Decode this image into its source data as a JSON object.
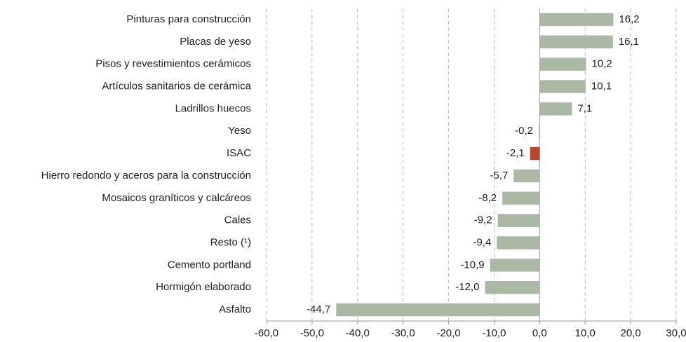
{
  "chart_data": {
    "type": "barh",
    "categories": [
      "Pinturas para construcción",
      "Placas de yeso",
      "Pisos y revestimientos cerámicos",
      "Artículos sanitarios de cerámica",
      "Ladrillos huecos",
      "Yeso",
      "ISAC",
      "Hierro redondo y aceros para la construcción",
      "Mosaicos graníticos y calcáreos",
      "Cales",
      "Resto (¹)",
      "Cemento portland",
      "Hormigón elaborado",
      "Asfalto"
    ],
    "values": [
      16.2,
      16.1,
      10.2,
      10.1,
      7.1,
      -0.2,
      -2.1,
      -5.7,
      -8.2,
      -9.2,
      -9.4,
      -10.9,
      -12.0,
      -44.7
    ],
    "value_labels": [
      "16,2",
      "16,1",
      "10,2",
      "10,1",
      "7,1",
      "-0,2",
      "-2,1",
      "-5,7",
      "-8,2",
      "-9,2",
      "-9,4",
      "-10,9",
      "-12,0",
      "-44,7"
    ],
    "colors": [
      "#abb8a3",
      "#abb8a3",
      "#abb8a3",
      "#abb8a3",
      "#abb8a3",
      "#abb8a3",
      "#b5452d",
      "#abb8a3",
      "#abb8a3",
      "#abb8a3",
      "#abb8a3",
      "#abb8a3",
      "#abb8a3",
      "#abb8a3"
    ],
    "xlim": [
      -60,
      30
    ],
    "xticks": [
      {
        "value": -60,
        "label": "-60,0"
      },
      {
        "value": -50,
        "label": "-50,0"
      },
      {
        "value": -40,
        "label": "-40,0"
      },
      {
        "value": -30,
        "label": "-30,0"
      },
      {
        "value": -20,
        "label": "-20,0"
      },
      {
        "value": -10,
        "label": "-10,0"
      },
      {
        "value": 0,
        "label": "0,0"
      },
      {
        "value": 10,
        "label": "10,0"
      },
      {
        "value": 20,
        "label": "20,0"
      },
      {
        "value": 30,
        "label": "30,0"
      }
    ],
    "grid": true
  }
}
